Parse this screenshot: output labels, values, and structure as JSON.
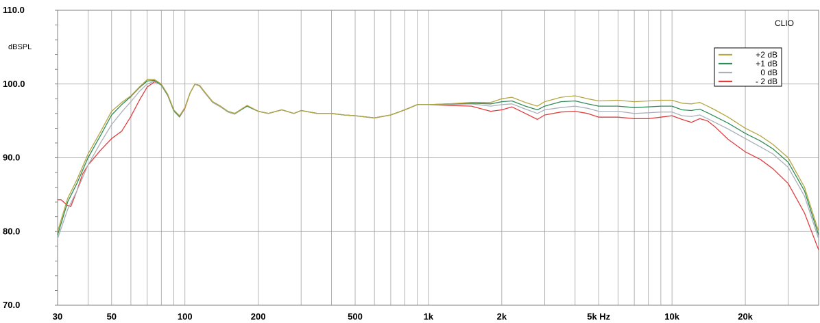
{
  "chart_data": {
    "type": "line",
    "ylabel": "dBSPL",
    "brand": "CLIO",
    "x_scale": "log",
    "xlim": [
      30,
      40000
    ],
    "ylim": [
      70,
      110
    ],
    "grid": true,
    "legend_position": "top-right",
    "y_ticks": [
      {
        "value": 70,
        "label": "70.0"
      },
      {
        "value": 80,
        "label": "80.0"
      },
      {
        "value": 90,
        "label": "90.0"
      },
      {
        "value": 100,
        "label": "100.0"
      },
      {
        "value": 110,
        "label": "110.0"
      }
    ],
    "x_ticks": [
      {
        "value": 30,
        "label": "30"
      },
      {
        "value": 50,
        "label": "50"
      },
      {
        "value": 100,
        "label": "100"
      },
      {
        "value": 200,
        "label": "200"
      },
      {
        "value": 500,
        "label": "500"
      },
      {
        "value": 1000,
        "label": "1k"
      },
      {
        "value": 2000,
        "label": "2k"
      },
      {
        "value": 5000,
        "label": "5k Hz"
      },
      {
        "value": 10000,
        "label": "10k"
      },
      {
        "value": 20000,
        "label": "20k"
      }
    ],
    "x_grid": [
      30,
      40,
      50,
      60,
      70,
      80,
      90,
      100,
      200,
      300,
      400,
      500,
      600,
      700,
      800,
      900,
      1000,
      2000,
      3000,
      4000,
      5000,
      6000,
      7000,
      8000,
      9000,
      10000,
      20000,
      30000,
      40000
    ],
    "series": [
      {
        "name": "+2 dB",
        "color": "#b5a642",
        "x": [
          30,
          33,
          36,
          40,
          45,
          50,
          55,
          60,
          65,
          70,
          75,
          80,
          85,
          90,
          95,
          100,
          105,
          110,
          115,
          120,
          130,
          140,
          150,
          160,
          180,
          200,
          220,
          250,
          280,
          300,
          350,
          400,
          450,
          500,
          600,
          700,
          800,
          900,
          1000,
          1200,
          1500,
          1800,
          2000,
          2200,
          2500,
          2800,
          3000,
          3500,
          4000,
          4500,
          5000,
          6000,
          7000,
          8000,
          9000,
          10000,
          11000,
          12000,
          13000,
          14000,
          15000,
          17000,
          20000,
          23000,
          26000,
          30000,
          35000,
          40000
        ],
        "y": [
          80.0,
          84.5,
          87.0,
          90.5,
          93.5,
          96.3,
          97.5,
          98.4,
          99.6,
          100.6,
          100.6,
          100.0,
          98.6,
          96.5,
          95.7,
          96.8,
          98.8,
          100.0,
          99.8,
          99.0,
          97.6,
          97.0,
          96.3,
          96.0,
          97.1,
          96.3,
          96.0,
          96.5,
          96.0,
          96.4,
          96.0,
          96.0,
          95.8,
          95.7,
          95.4,
          95.8,
          96.5,
          97.2,
          97.2,
          97.3,
          97.5,
          97.5,
          98.0,
          98.2,
          97.5,
          97.0,
          97.6,
          98.2,
          98.4,
          98.0,
          97.7,
          97.8,
          97.6,
          97.7,
          97.8,
          97.8,
          97.4,
          97.3,
          97.5,
          97.0,
          96.5,
          95.5,
          94.0,
          93.0,
          91.8,
          90.0,
          86.0,
          80.0
        ]
      },
      {
        "name": "+1 dB",
        "color": "#2e8b57",
        "x": [
          30,
          33,
          36,
          40,
          45,
          50,
          55,
          60,
          65,
          70,
          75,
          80,
          85,
          90,
          95,
          100,
          105,
          110,
          115,
          120,
          130,
          140,
          150,
          160,
          180,
          200,
          220,
          250,
          280,
          300,
          350,
          400,
          450,
          500,
          600,
          700,
          800,
          900,
          1000,
          1200,
          1500,
          1800,
          2000,
          2200,
          2500,
          2800,
          3000,
          3500,
          4000,
          4500,
          5000,
          6000,
          7000,
          8000,
          9000,
          10000,
          11000,
          12000,
          13000,
          14000,
          15000,
          17000,
          20000,
          23000,
          26000,
          30000,
          35000,
          40000
        ],
        "y": [
          79.5,
          84.0,
          86.5,
          90.0,
          93.0,
          95.8,
          97.2,
          98.3,
          99.5,
          100.4,
          100.5,
          99.9,
          98.5,
          96.4,
          95.6,
          96.8,
          98.8,
          100.0,
          99.8,
          99.0,
          97.6,
          97.0,
          96.3,
          96.0,
          97.0,
          96.3,
          96.0,
          96.5,
          96.0,
          96.4,
          96.0,
          96.0,
          95.8,
          95.7,
          95.4,
          95.8,
          96.5,
          97.2,
          97.2,
          97.3,
          97.4,
          97.3,
          97.6,
          97.7,
          97.0,
          96.5,
          97.0,
          97.6,
          97.7,
          97.3,
          97.0,
          97.0,
          96.8,
          96.9,
          97.0,
          97.0,
          96.5,
          96.4,
          96.6,
          96.1,
          95.6,
          94.7,
          93.3,
          92.3,
          91.2,
          89.4,
          85.5,
          79.5
        ]
      },
      {
        "name": "0 dB",
        "color": "#a9b1b8",
        "x": [
          30,
          33,
          36,
          40,
          45,
          50,
          55,
          60,
          65,
          70,
          75,
          80,
          85,
          90,
          95,
          100,
          105,
          110,
          115,
          120,
          130,
          140,
          150,
          160,
          180,
          200,
          220,
          250,
          280,
          300,
          350,
          400,
          450,
          500,
          600,
          700,
          800,
          900,
          1000,
          1200,
          1500,
          1800,
          2000,
          2200,
          2500,
          2800,
          3000,
          3500,
          4000,
          4500,
          5000,
          6000,
          7000,
          8000,
          9000,
          10000,
          11000,
          12000,
          13000,
          14000,
          15000,
          17000,
          20000,
          23000,
          26000,
          30000,
          35000,
          40000
        ],
        "y": [
          79.0,
          83.0,
          85.5,
          89.0,
          92.0,
          94.5,
          96.2,
          97.6,
          99.0,
          100.0,
          100.4,
          99.8,
          98.4,
          96.3,
          95.5,
          96.8,
          98.8,
          100.0,
          99.7,
          98.9,
          97.5,
          96.9,
          96.2,
          95.9,
          97.0,
          96.3,
          96.0,
          96.5,
          96.0,
          96.4,
          96.0,
          96.0,
          95.8,
          95.7,
          95.4,
          95.8,
          96.5,
          97.2,
          97.2,
          97.2,
          97.3,
          97.0,
          97.2,
          97.3,
          96.6,
          96.0,
          96.5,
          96.8,
          97.0,
          96.7,
          96.3,
          96.3,
          96.0,
          96.1,
          96.2,
          96.2,
          95.7,
          95.6,
          95.8,
          95.3,
          94.8,
          93.9,
          92.6,
          91.5,
          90.5,
          88.7,
          84.8,
          79.0
        ]
      },
      {
        "name": "- 2 dB",
        "color": "#e03c3c",
        "x": [
          30,
          31,
          33,
          34,
          36,
          38,
          40,
          45,
          50,
          55,
          60,
          65,
          70,
          75,
          80,
          85,
          90,
          95,
          100,
          105,
          110,
          115,
          120,
          130,
          140,
          150,
          160,
          180,
          200,
          220,
          250,
          280,
          300,
          350,
          400,
          450,
          500,
          600,
          700,
          800,
          900,
          1000,
          1200,
          1500,
          1800,
          2000,
          2200,
          2500,
          2800,
          3000,
          3500,
          4000,
          4500,
          5000,
          6000,
          7000,
          8000,
          9000,
          10000,
          11000,
          12000,
          13000,
          14000,
          15000,
          17000,
          20000,
          23000,
          26000,
          30000,
          35000,
          40000
        ],
        "y": [
          84.3,
          84.3,
          83.5,
          83.4,
          85.5,
          87.8,
          89.0,
          91.0,
          92.6,
          93.6,
          95.6,
          97.8,
          99.6,
          100.3,
          99.9,
          98.5,
          96.4,
          95.5,
          96.7,
          98.8,
          100.0,
          99.7,
          98.9,
          97.5,
          96.9,
          96.3,
          96.0,
          97.0,
          96.3,
          96.0,
          96.5,
          96.0,
          96.4,
          96.0,
          96.0,
          95.8,
          95.7,
          95.4,
          95.8,
          96.5,
          97.2,
          97.2,
          97.1,
          97.0,
          96.3,
          96.5,
          96.9,
          96.0,
          95.2,
          95.8,
          96.2,
          96.3,
          96.0,
          95.5,
          95.5,
          95.3,
          95.3,
          95.5,
          95.7,
          95.2,
          94.8,
          95.3,
          95.0,
          94.2,
          92.5,
          90.8,
          89.8,
          88.5,
          86.5,
          82.5,
          77.5
        ]
      }
    ]
  }
}
